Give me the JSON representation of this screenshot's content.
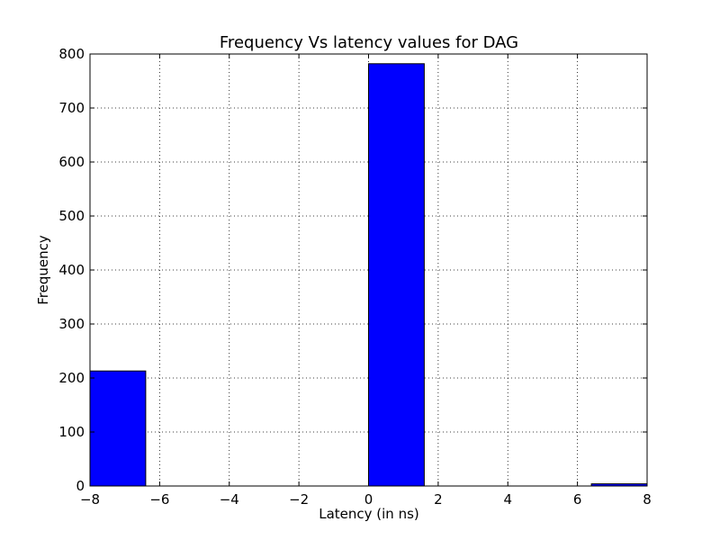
{
  "chart_data": {
    "type": "bar",
    "title": "Frequency Vs latency values for DAG",
    "xlabel": "Latency (in ns)",
    "ylabel": "Frequency",
    "xlim": [
      -8,
      8
    ],
    "ylim": [
      0,
      800
    ],
    "grid": true,
    "bin_edges": [
      -8,
      -6.4,
      -4.8,
      -3.2,
      -1.6,
      0,
      1.6,
      3.2,
      4.8,
      6.4,
      8
    ],
    "values": [
      213,
      0,
      0,
      0,
      0,
      782,
      0,
      0,
      0,
      4
    ],
    "bar_color": "#0000ff",
    "xticks": [
      -8,
      -6,
      -4,
      -2,
      0,
      2,
      4,
      6,
      8
    ],
    "xtick_labels": [
      "−8",
      "−6",
      "−4",
      "−2",
      "0",
      "2",
      "4",
      "6",
      "8"
    ],
    "yticks": [
      0,
      100,
      200,
      300,
      400,
      500,
      600,
      700,
      800
    ],
    "ytick_labels": [
      "0",
      "100",
      "200",
      "300",
      "400",
      "500",
      "600",
      "700",
      "800"
    ]
  }
}
